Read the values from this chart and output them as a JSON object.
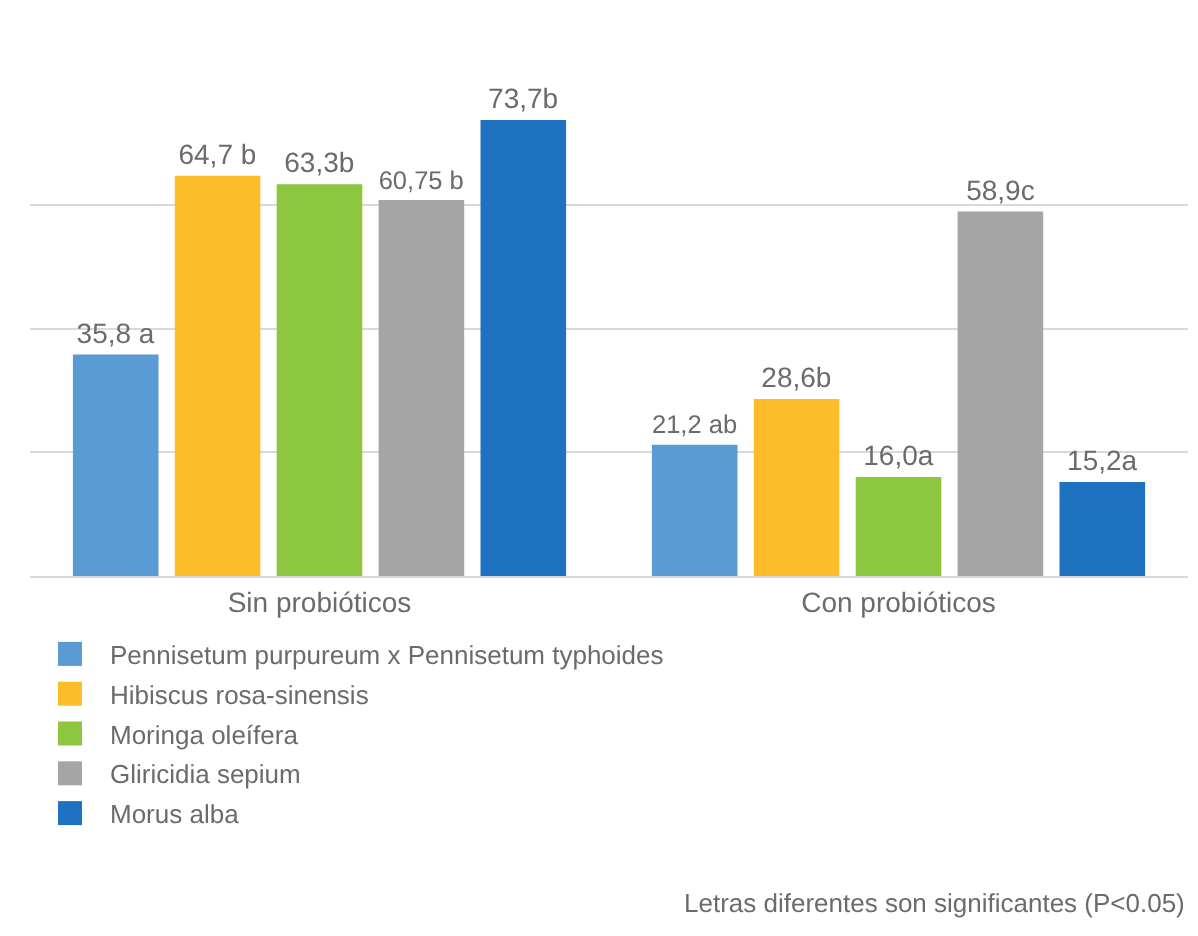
{
  "chart_data": {
    "type": "bar",
    "categories": [
      "Sin probióticos",
      "Con probióticos"
    ],
    "series": [
      {
        "name": "Pennisetum purpureum x Pennisetum typhoides",
        "color": "#5b9bd5",
        "values": [
          35.8,
          21.2
        ],
        "value_labels": [
          "35,8 a",
          "21,2 ab"
        ]
      },
      {
        "name": "Hibiscus rosa-sinensis",
        "color": "#fdbd2b",
        "values": [
          64.7,
          28.6
        ],
        "value_labels": [
          "64,7 b",
          "28,6b"
        ]
      },
      {
        "name": "Moringa oleífera",
        "color": "#8dc63f",
        "values": [
          63.3,
          16.0
        ],
        "value_labels": [
          "63,3b",
          "16,0a"
        ]
      },
      {
        "name": "Gliricidia sepium",
        "color": "#a5a5a5",
        "values": [
          60.75,
          58.9
        ],
        "value_labels": [
          "60,75 b",
          "58,9c"
        ]
      },
      {
        "name": "Morus alba",
        "color": "#1f72c0",
        "values": [
          73.7,
          15.2
        ],
        "value_labels": [
          "73,7b",
          "15,2a"
        ]
      }
    ],
    "grid": "y",
    "tick_labels": "x",
    "legend": "bottom",
    "annotations": [
      "Letras diferentes son significantes (P<0.05)"
    ]
  }
}
